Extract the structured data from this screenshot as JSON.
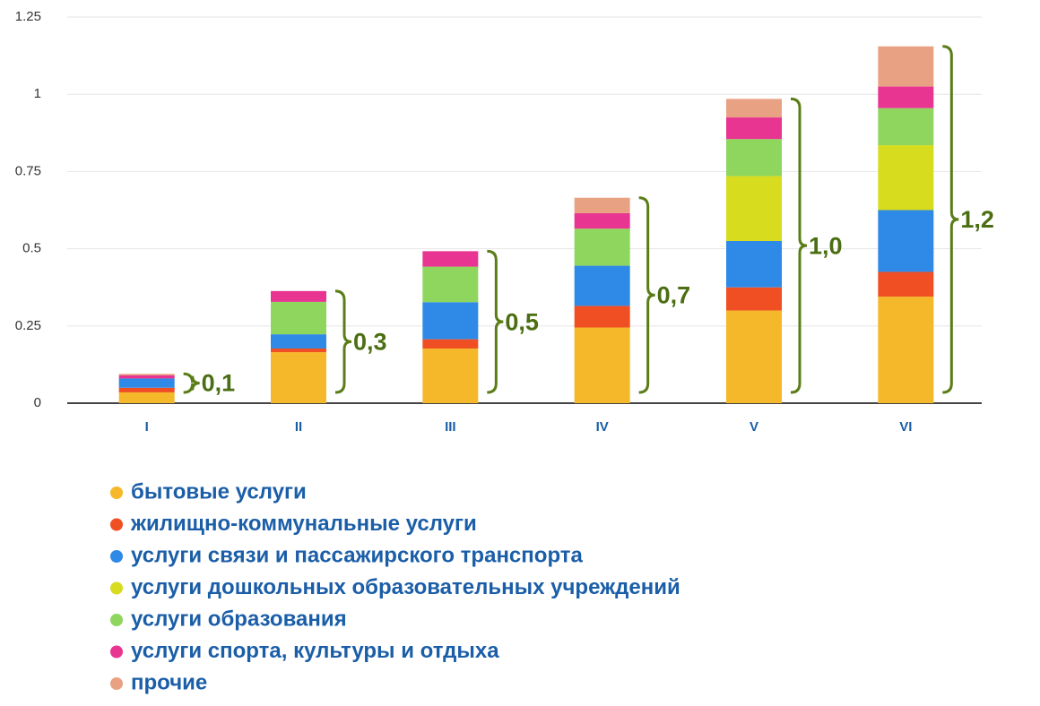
{
  "chart_data": {
    "type": "stacked_bar",
    "categories": [
      "I",
      "II",
      "III",
      "IV",
      "V",
      "VI"
    ],
    "series": [
      {
        "name": "бытовые услуги",
        "color": "#f5b82a",
        "values": [
          0.035,
          0.165,
          0.177,
          0.245,
          0.3,
          0.345
        ]
      },
      {
        "name": "жилищно-коммунальные услуги",
        "color": "#f04e23",
        "values": [
          0.015,
          0.012,
          0.03,
          0.07,
          0.075,
          0.08
        ]
      },
      {
        "name": "услуги связи и пассажирского транспорта",
        "color": "#2e8ae6",
        "values": [
          0.03,
          0.046,
          0.12,
          0.13,
          0.15,
          0.2
        ]
      },
      {
        "name": "услуги дошкольных образовательных учреждений",
        "color": "#d8dc1f",
        "values": [
          0,
          0,
          0,
          0,
          0.21,
          0.21
        ]
      },
      {
        "name": "услуги образования",
        "color": "#8fd65f",
        "values": [
          0,
          0.105,
          0.115,
          0.12,
          0.12,
          0.12
        ]
      },
      {
        "name": "услуги спорта, культуры и отдыха",
        "color": "#e83591",
        "values": [
          0.01,
          0.035,
          0.05,
          0.05,
          0.07,
          0.07
        ]
      },
      {
        "name": "прочие",
        "color": "#e8a283",
        "values": [
          0.005,
          0,
          0,
          0.05,
          0.06,
          0.13
        ]
      }
    ],
    "annotations": [
      "0,1",
      "0,3",
      "0,5",
      "0,7",
      "1,0",
      "1,2"
    ],
    "ylim": [
      0,
      1.25
    ],
    "yticks": [
      0,
      0.25,
      0.5,
      0.75,
      1,
      1.25
    ],
    "grid": true
  }
}
